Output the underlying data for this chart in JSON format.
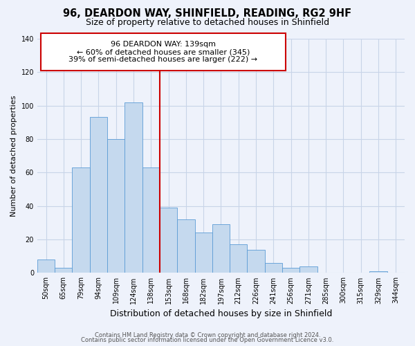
{
  "title": "96, DEARDON WAY, SHINFIELD, READING, RG2 9HF",
  "subtitle": "Size of property relative to detached houses in Shinfield",
  "xlabel": "Distribution of detached houses by size in Shinfield",
  "ylabel": "Number of detached properties",
  "bar_labels": [
    "50sqm",
    "65sqm",
    "79sqm",
    "94sqm",
    "109sqm",
    "124sqm",
    "138sqm",
    "153sqm",
    "168sqm",
    "182sqm",
    "197sqm",
    "212sqm",
    "226sqm",
    "241sqm",
    "256sqm",
    "271sqm",
    "285sqm",
    "300sqm",
    "315sqm",
    "329sqm",
    "344sqm"
  ],
  "bar_values": [
    8,
    3,
    63,
    93,
    80,
    102,
    63,
    39,
    32,
    24,
    29,
    17,
    14,
    6,
    3,
    4,
    0,
    0,
    0,
    1,
    0
  ],
  "bar_color": "#c5d9ee",
  "bar_edge_color": "#5b9bd5",
  "vline_x_index": 6,
  "vline_color": "#cc0000",
  "annotation_line1": "96 DEARDON WAY: 139sqm",
  "annotation_line2": "← 60% of detached houses are smaller (345)",
  "annotation_line3": "39% of semi-detached houses are larger (222) →",
  "annotation_box_border_color": "#cc0000",
  "ylim": [
    0,
    140
  ],
  "yticks": [
    0,
    20,
    40,
    60,
    80,
    100,
    120,
    140
  ],
  "footer_line1": "Contains HM Land Registry data © Crown copyright and database right 2024.",
  "footer_line2": "Contains public sector information licensed under the Open Government Licence v3.0.",
  "background_color": "#eef2fb",
  "grid_color": "#c8d4e8",
  "title_fontsize": 10.5,
  "subtitle_fontsize": 9,
  "ylabel_fontsize": 8,
  "xlabel_fontsize": 9,
  "tick_fontsize": 7,
  "annotation_fontsize": 8,
  "footer_fontsize": 6
}
